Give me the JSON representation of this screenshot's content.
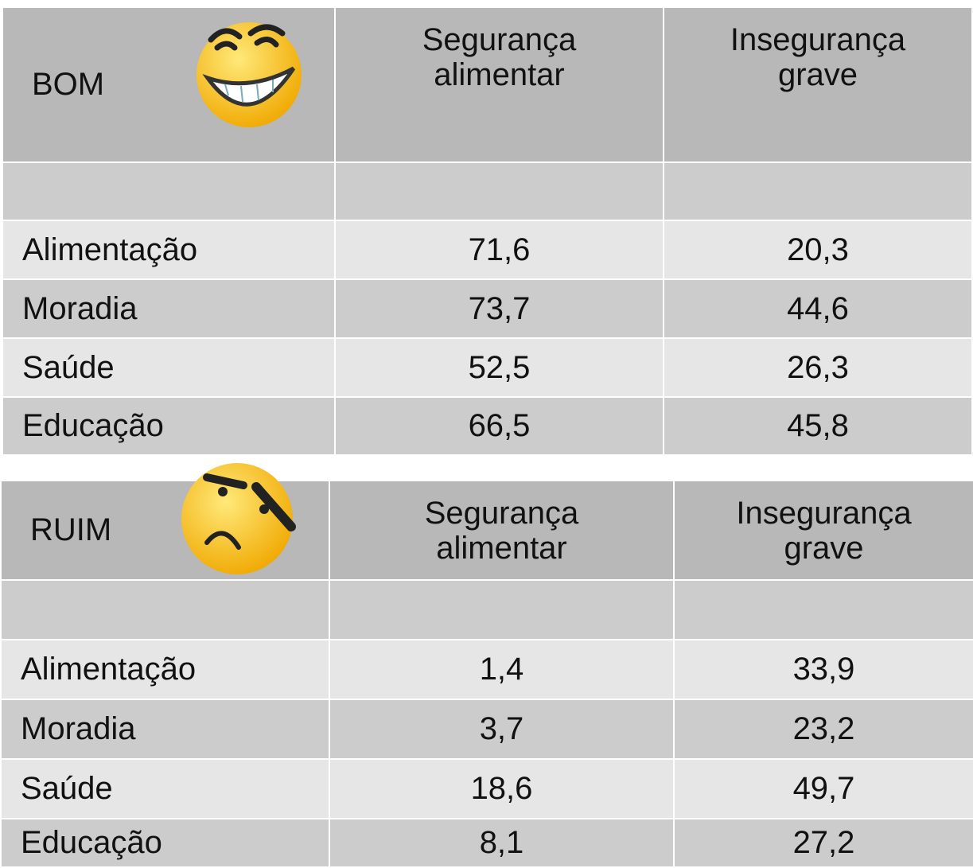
{
  "tables": [
    {
      "label": "BOM",
      "columns": [
        "Segurança alimentar",
        "Insegurança grave"
      ],
      "rows": [
        {
          "label": "Alimentação",
          "values": [
            "71,6",
            "20,3"
          ]
        },
        {
          "label": "Moradia",
          "values": [
            "73,7",
            "44,6"
          ]
        },
        {
          "label": "Saúde",
          "values": [
            "52,5",
            "26,3"
          ]
        },
        {
          "label": "Educação",
          "values": [
            "66,5",
            "45,8"
          ]
        }
      ]
    },
    {
      "label": "RUIM",
      "columns": [
        "Segurança alimentar",
        "Insegurança grave"
      ],
      "rows": [
        {
          "label": "Alimentação",
          "values": [
            "1,4",
            "33,9"
          ]
        },
        {
          "label": "Moradia",
          "values": [
            "3,7",
            "23,2"
          ]
        },
        {
          "label": "Saúde",
          "values": [
            "18,6",
            "49,7"
          ]
        },
        {
          "label": "Educação",
          "values": [
            "8,1",
            "27,2"
          ]
        }
      ]
    }
  ]
}
